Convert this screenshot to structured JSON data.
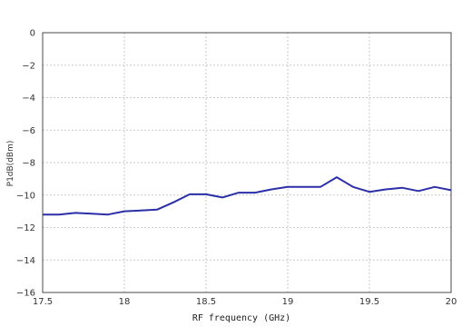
{
  "chart_data": {
    "type": "line",
    "title": "",
    "xlabel": "RF frequency (GHz)",
    "ylabel": "P1dB(dBm)",
    "xlim": [
      17.5,
      20
    ],
    "ylim": [
      -16,
      0
    ],
    "x_ticks": [
      17.5,
      18,
      18.5,
      19,
      19.5,
      20
    ],
    "x_tick_labels": [
      "17.5",
      "18",
      "18.5",
      "19",
      "19.5",
      "20"
    ],
    "y_ticks": [
      0,
      -2,
      -4,
      -6,
      -8,
      -10,
      -12,
      -14,
      -16
    ],
    "y_tick_labels": [
      "0",
      "−2",
      "−4",
      "−6",
      "−8",
      "−10",
      "−12",
      "−14",
      "−16"
    ],
    "grid": true,
    "legend": false,
    "series": [
      {
        "color": "#2b2fa8",
        "x": [
          17.5,
          17.6,
          17.7,
          17.8,
          17.9,
          18.0,
          18.1,
          18.2,
          18.3,
          18.4,
          18.5,
          18.6,
          18.7,
          18.8,
          18.9,
          19.0,
          19.1,
          19.2,
          19.3,
          19.4,
          19.5,
          19.6,
          19.7,
          19.8,
          19.9,
          20.0
        ],
        "y": [
          -11.2,
          -11.2,
          -11.1,
          -11.15,
          -11.2,
          -11.0,
          -10.95,
          -10.9,
          -10.45,
          -9.95,
          -9.95,
          -10.15,
          -9.85,
          -9.85,
          -9.65,
          -9.5,
          -9.5,
          -9.5,
          -8.9,
          -9.5,
          -9.8,
          -9.65,
          -9.55,
          -9.75,
          -9.5,
          -9.7
        ]
      }
    ]
  }
}
